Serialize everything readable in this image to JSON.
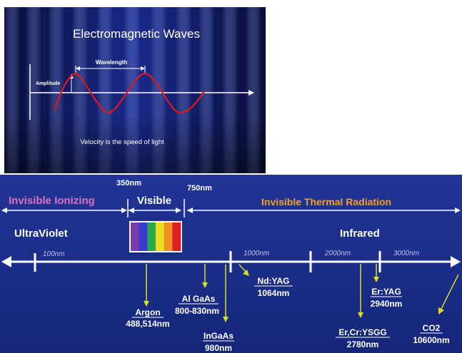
{
  "top_slide": {
    "title": "Electromagnetic Waves",
    "wavelength_label": "Wavelength",
    "amplitude_label": "Amplitude",
    "footer": "Velocity is the speed of light"
  },
  "spectrum": {
    "boundary_labels": {
      "visible_start": "350nm",
      "visible_end": "750nm"
    },
    "regions": {
      "ionizing": "Invisible Ionizing",
      "visible": "Visible",
      "thermal": "Invisible Thermal Radiation",
      "ultraviolet": "UltraViolet",
      "infrared": "Infrared"
    },
    "scale_ticks": [
      "100nm",
      "1000nm",
      "2000nm",
      "3000nm"
    ],
    "lasers": [
      {
        "name": "Argon",
        "wavelength": "488,514nm"
      },
      {
        "name": "Al GaAs",
        "wavelength": "800-830nm"
      },
      {
        "name": "InGaAs",
        "wavelength": "980nm"
      },
      {
        "name": "Nd:YAG",
        "wavelength": "1064nm"
      },
      {
        "name": "Er,Cr:YSGG",
        "wavelength": "2780nm"
      },
      {
        "name": "Er:YAG",
        "wavelength": "2940nm"
      },
      {
        "name": "CO2",
        "wavelength": "10600nm"
      }
    ]
  },
  "colors": {
    "slide_bg": "#1a2a8c",
    "slide_bg_dark": "#070d3a",
    "wave": "#e01818",
    "spectrum_bg": "#1a2e86",
    "ionizing_text": "#e070c0",
    "thermal_text": "#f4a020",
    "pointer": "#d8e020",
    "text": "#ffffff"
  },
  "visible_band_colors": [
    "#7a3db0",
    "#3a3ad0",
    "#2aa84a",
    "#e8e020",
    "#f09020",
    "#e02020"
  ]
}
